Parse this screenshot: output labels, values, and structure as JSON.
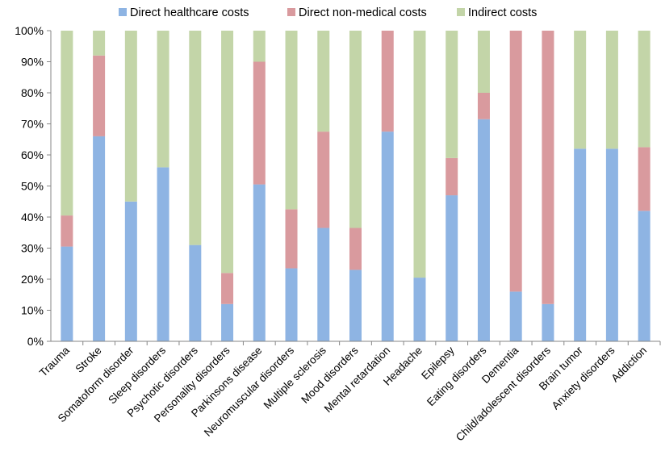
{
  "chart_data": {
    "type": "bar",
    "stacked": true,
    "percent": true,
    "title": "",
    "xlabel": "",
    "ylabel": "",
    "ylim": [
      0,
      100
    ],
    "yticks": [
      "0%",
      "10%",
      "20%",
      "30%",
      "40%",
      "50%",
      "60%",
      "70%",
      "80%",
      "90%",
      "100%"
    ],
    "grid": false,
    "legend_position": "top",
    "categories": [
      "Trauma",
      "Stroke",
      "Somatoform disorder",
      "Sleep disorders",
      "Psychotic disorders",
      "Personality disorders",
      "Parkinsons disease",
      "Neuromuscular disorders",
      "Multiple sclerosis",
      "Mood disorders",
      "Mental retardation",
      "Headache",
      "Epilepsy",
      "Eating disorders",
      "Dementia",
      "Child/adolescent disorders",
      "Brain tumor",
      "Anxiety disorders",
      "Addiction"
    ],
    "series": [
      {
        "name": "Direct healthcare costs",
        "color": "#8eb4e3",
        "values": [
          30.5,
          66,
          45,
          56,
          31,
          12,
          50.5,
          23.5,
          36.5,
          23,
          67.5,
          20.5,
          47,
          71.5,
          16,
          12,
          62,
          62,
          42
        ]
      },
      {
        "name": "Direct non-medical costs",
        "color": "#d99a9e",
        "values": [
          10,
          26,
          0,
          0,
          0,
          10,
          39.5,
          19,
          31,
          13.5,
          32.5,
          0,
          12,
          8.5,
          84,
          88,
          0,
          0,
          20.5
        ]
      },
      {
        "name": "Indirect costs",
        "color": "#c3d5a8",
        "values": [
          59.5,
          8,
          55,
          44,
          69,
          78,
          10,
          57.5,
          32.5,
          63.5,
          0,
          79.5,
          41,
          20,
          0,
          0,
          38,
          38,
          37.5
        ]
      }
    ]
  }
}
